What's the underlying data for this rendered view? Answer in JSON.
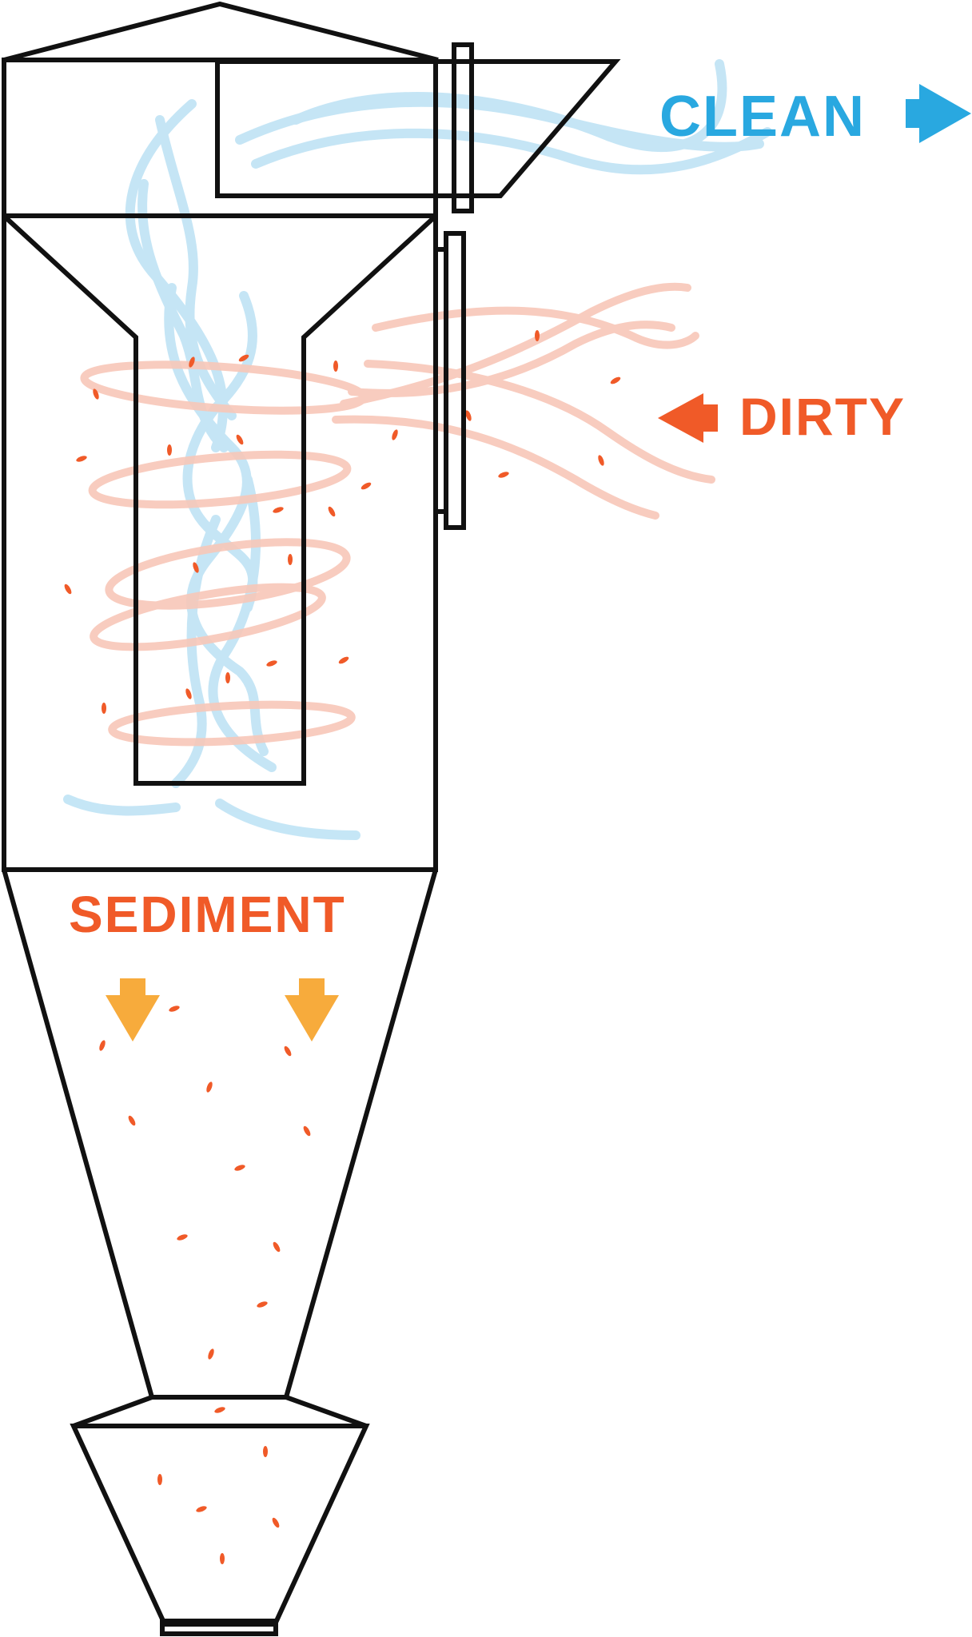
{
  "labels": {
    "clean": "CLEAN",
    "dirty": "DIRTY",
    "sediment": "SEDIMENT"
  },
  "colors": {
    "clean": "#29a8e0",
    "dirty": "#f05a28",
    "sediment_arrow": "#f7ab3c",
    "clean_stream": "#bfe3f5",
    "dirty_stream": "#f8c7b8",
    "particle": "#f05a28",
    "outline": "#111111"
  },
  "icons": {
    "clean_arrow": "arrow-right-icon",
    "dirty_arrow": "arrow-left-icon",
    "sediment_arrows": "arrow-down-icon"
  }
}
